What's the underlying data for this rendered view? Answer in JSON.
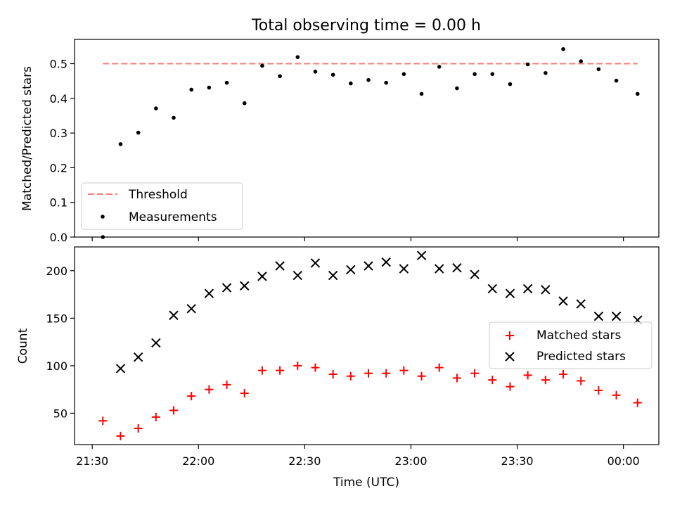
{
  "title": "Total observing time = 0.00 h",
  "colors": {
    "threshold": "#f08080",
    "measurement": "#000000",
    "matched": "#ff0000",
    "predicted": "#000000"
  },
  "chart_data": [
    {
      "type": "scatter",
      "panel": "top",
      "ylabel": "Matched/Predicted stars",
      "ylim": [
        0,
        0.57
      ],
      "yticks": [
        "0.0",
        "0.1",
        "0.2",
        "0.3",
        "0.4",
        "0.5"
      ],
      "legend_position": "lower-left",
      "threshold": {
        "name": "Threshold",
        "value": 0.5,
        "x_range": [
          "21:33",
          "00:04"
        ]
      },
      "series": [
        {
          "name": "Measurements",
          "x": [
            "21:33",
            "21:38",
            "21:43",
            "21:48",
            "21:53",
            "21:58",
            "22:03",
            "22:08",
            "22:13",
            "22:18",
            "22:23",
            "22:28",
            "22:33",
            "22:38",
            "22:43",
            "22:48",
            "22:53",
            "22:58",
            "23:03",
            "23:08",
            "23:13",
            "23:18",
            "23:23",
            "23:28",
            "23:33",
            "23:38",
            "23:43",
            "23:48",
            "23:53",
            "23:58",
            "00:04"
          ],
          "y": [
            0.0,
            0.268,
            0.301,
            0.371,
            0.344,
            0.425,
            0.431,
            0.445,
            0.386,
            0.494,
            0.464,
            0.519,
            0.477,
            0.468,
            0.443,
            0.453,
            0.445,
            0.47,
            0.413,
            0.491,
            0.429,
            0.47,
            0.47,
            0.441,
            0.498,
            0.473,
            0.542,
            0.507,
            0.484,
            0.451,
            0.413
          ]
        }
      ]
    },
    {
      "type": "scatter",
      "panel": "bottom",
      "ylabel": "Count",
      "xlabel": "Time (UTC)",
      "ylim": [
        17,
        225
      ],
      "yticks": [
        "50",
        "100",
        "150",
        "200"
      ],
      "xticks": [
        "21:30",
        "22:00",
        "22:30",
        "23:00",
        "23:30",
        "00:00"
      ],
      "legend_position": "center-right",
      "series": [
        {
          "name": "Matched stars",
          "x": [
            "21:33",
            "21:38",
            "21:43",
            "21:48",
            "21:53",
            "21:58",
            "22:03",
            "22:08",
            "22:13",
            "22:18",
            "22:23",
            "22:28",
            "22:33",
            "22:38",
            "22:43",
            "22:48",
            "22:53",
            "22:58",
            "23:03",
            "23:08",
            "23:13",
            "23:18",
            "23:23",
            "23:28",
            "23:33",
            "23:38",
            "23:43",
            "23:48",
            "23:53",
            "23:58",
            "00:04"
          ],
          "y": [
            42,
            26,
            34,
            46,
            53,
            68,
            75,
            80,
            71,
            95,
            95,
            100,
            98,
            91,
            89,
            92,
            92,
            95,
            89,
            98,
            87,
            92,
            85,
            78,
            90,
            85,
            91,
            84,
            74,
            69,
            61
          ]
        },
        {
          "name": "Predicted stars",
          "x": [
            "21:38",
            "21:43",
            "21:48",
            "21:53",
            "21:58",
            "22:03",
            "22:08",
            "22:13",
            "22:18",
            "22:23",
            "22:28",
            "22:33",
            "22:38",
            "22:43",
            "22:48",
            "22:53",
            "22:58",
            "23:03",
            "23:08",
            "23:13",
            "23:18",
            "23:23",
            "23:28",
            "23:33",
            "23:38",
            "23:43",
            "23:48",
            "23:53",
            "23:58",
            "00:04"
          ],
          "y": [
            97,
            109,
            124,
            153,
            160,
            176,
            182,
            184,
            194,
            205,
            195,
            208,
            195,
            201,
            205,
            209,
            202,
            216,
            202,
            203,
            196,
            181,
            176,
            181,
            180,
            168,
            165,
            152,
            152,
            148
          ]
        }
      ]
    }
  ]
}
